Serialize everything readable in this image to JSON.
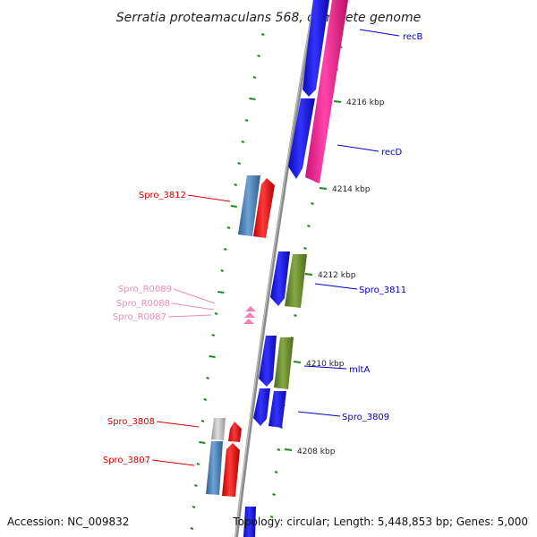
{
  "title": "Serratia proteamaculans 568, complete genome",
  "footer": {
    "accession": "Accession: NC_009832",
    "topology": "Topology: circular; Length: 5,448,853 bp; Genes: 5,000"
  },
  "ticks": [
    "4216 kbp",
    "4214 kbp",
    "4212 kbp",
    "4210 kbp",
    "4208 kbp"
  ],
  "genes_forward": [
    "recB",
    "recD",
    "Spro_3811",
    "mltA",
    "Spro_3809"
  ],
  "genes_reverse": [
    "Spro_3812",
    "Spro_3808",
    "Spro_3807"
  ],
  "rna_genes": [
    "Spro_R0089",
    "Spro_R0088",
    "Spro_R0087"
  ],
  "colors": {
    "forward_label": "#0000cc",
    "reverse_label": "#dd0000",
    "rna_label": "#ee88bb",
    "cds_blue": "#1a1aee",
    "cds_magenta": "#ee2288",
    "cds_olive": "#6b8a2e",
    "cds_steel": "#4a82b8",
    "cds_red": "#ee1111",
    "cds_grey": "#bbbbbb",
    "backbone": "#888888",
    "tick_green": "#1a8a1a"
  }
}
